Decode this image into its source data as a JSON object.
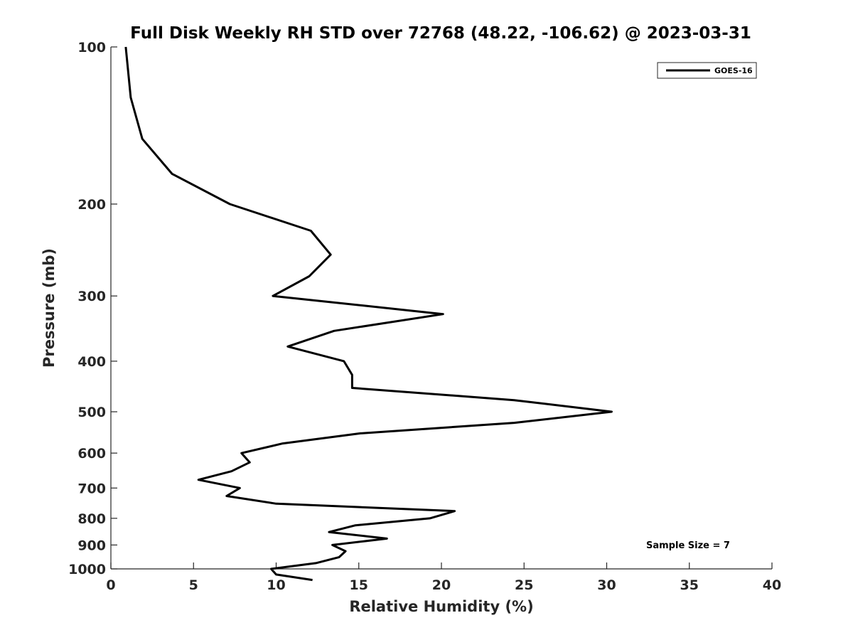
{
  "chart_data": {
    "type": "line",
    "title": "Full Disk Weekly RH STD over 72768 (48.22, -106.62) @ 2023-03-31",
    "xlabel": "Relative Humidity (%)",
    "ylabel": "Pressure (mb)",
    "xlim": [
      0,
      40
    ],
    "ylim": [
      1000,
      100
    ],
    "yscale": "log",
    "xticks": [
      0,
      5,
      10,
      15,
      20,
      25,
      30,
      35,
      40
    ],
    "xtick_labels": [
      "0",
      "5",
      "10",
      "15",
      "20",
      "25",
      "30",
      "35",
      "40"
    ],
    "yticks": [
      100,
      200,
      300,
      400,
      500,
      600,
      700,
      800,
      900,
      1000
    ],
    "ytick_labels": [
      "100",
      "200",
      "300",
      "400",
      "500",
      "600",
      "700",
      "800",
      "900",
      "1000"
    ],
    "grid": false,
    "legend": {
      "position": "top-right",
      "entries": [
        "GOES-16"
      ]
    },
    "annotation": "Sample Size = 7",
    "series": [
      {
        "name": "GOES-16",
        "color": "#000000",
        "points": [
          {
            "x": 0.9,
            "y": 100
          },
          {
            "x": 1.2,
            "y": 125
          },
          {
            "x": 1.9,
            "y": 150
          },
          {
            "x": 3.7,
            "y": 175
          },
          {
            "x": 7.2,
            "y": 200
          },
          {
            "x": 12.1,
            "y": 225
          },
          {
            "x": 13.3,
            "y": 250
          },
          {
            "x": 12.0,
            "y": 275
          },
          {
            "x": 9.8,
            "y": 300
          },
          {
            "x": 20.1,
            "y": 325
          },
          {
            "x": 13.5,
            "y": 350
          },
          {
            "x": 10.7,
            "y": 375
          },
          {
            "x": 14.1,
            "y": 400
          },
          {
            "x": 14.6,
            "y": 425
          },
          {
            "x": 14.6,
            "y": 450
          },
          {
            "x": 24.4,
            "y": 475
          },
          {
            "x": 30.3,
            "y": 500
          },
          {
            "x": 24.4,
            "y": 525
          },
          {
            "x": 15.1,
            "y": 550
          },
          {
            "x": 10.4,
            "y": 575
          },
          {
            "x": 7.9,
            "y": 600
          },
          {
            "x": 8.4,
            "y": 625
          },
          {
            "x": 7.3,
            "y": 650
          },
          {
            "x": 5.3,
            "y": 675
          },
          {
            "x": 7.8,
            "y": 700
          },
          {
            "x": 7.0,
            "y": 725
          },
          {
            "x": 10.0,
            "y": 750
          },
          {
            "x": 20.8,
            "y": 775
          },
          {
            "x": 19.3,
            "y": 800
          },
          {
            "x": 14.8,
            "y": 825
          },
          {
            "x": 13.2,
            "y": 850
          },
          {
            "x": 16.7,
            "y": 875
          },
          {
            "x": 13.4,
            "y": 900
          },
          {
            "x": 14.2,
            "y": 925
          },
          {
            "x": 13.8,
            "y": 950
          },
          {
            "x": 12.4,
            "y": 975
          },
          {
            "x": 9.7,
            "y": 1000
          },
          {
            "x": 10.0,
            "y": 1025
          },
          {
            "x": 12.2,
            "y": 1050
          }
        ]
      }
    ]
  }
}
